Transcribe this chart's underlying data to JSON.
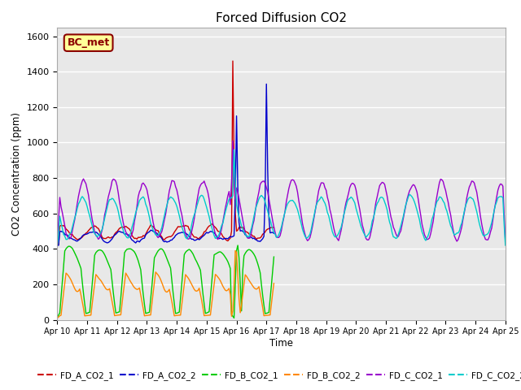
{
  "title": "Forced Diffusion CO2",
  "ylabel": "CO2 Concentration (ppm)",
  "xlabel": "Time",
  "ylim": [
    0,
    1650
  ],
  "bg_color": "#e8e8e8",
  "legend_label": "BC_met",
  "legend_box_facecolor": "#ffff99",
  "legend_box_edgecolor": "#8B0000",
  "series_colors": {
    "FD_A_CO2_1": "#cc0000",
    "FD_A_CO2_2": "#0000cc",
    "FD_B_CO2_1": "#00cc00",
    "FD_B_CO2_2": "#ff8800",
    "FD_C_CO2_1": "#9900cc",
    "FD_C_CO2_2": "#00cccc"
  },
  "xtick_labels": [
    "Apr 10",
    "Apr 11",
    "Apr 12",
    "Apr 13",
    "Apr 14",
    "Apr 15",
    "Apr 16",
    "Apr 17",
    "Apr 18",
    "Apr 19",
    "Apr 20",
    "Apr 21",
    "Apr 22",
    "Apr 23",
    "Apr 24",
    "Apr 25"
  ],
  "xtick_positions": [
    0,
    24,
    48,
    72,
    96,
    120,
    144,
    168,
    192,
    216,
    240,
    264,
    288,
    312,
    336,
    360
  ],
  "yticks": [
    0,
    200,
    400,
    600,
    800,
    1000,
    1200,
    1400,
    1600
  ],
  "n_points": 361,
  "figwidth": 6.4,
  "figheight": 4.8,
  "dpi": 100
}
